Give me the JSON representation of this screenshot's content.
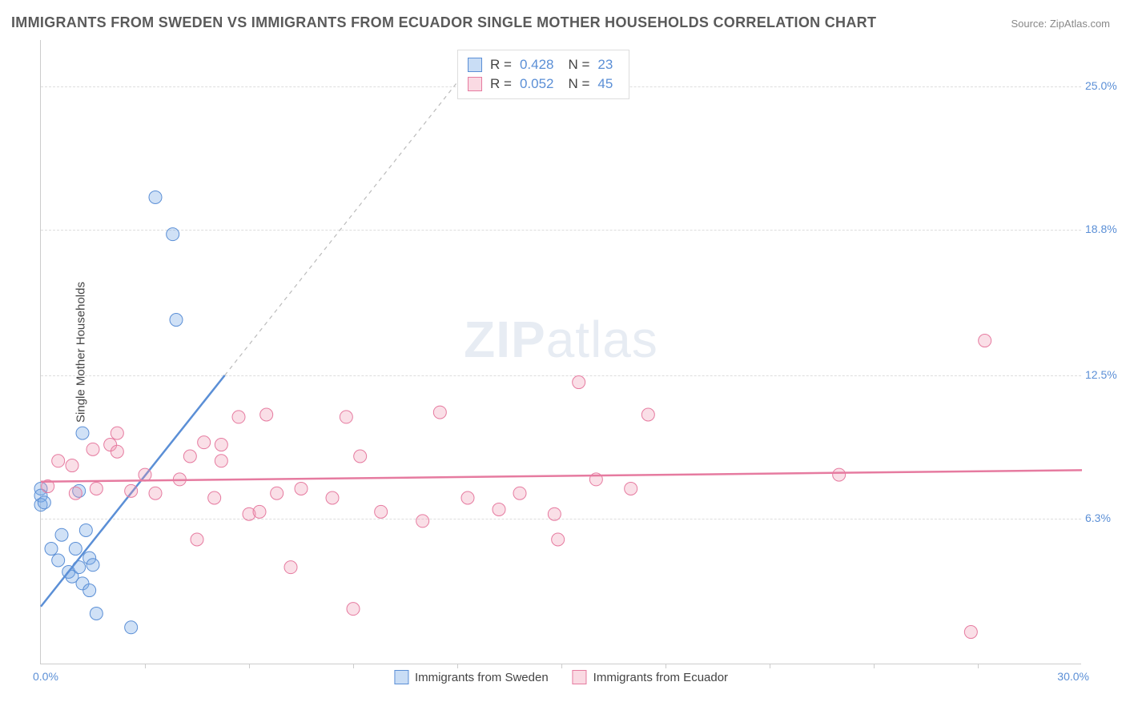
{
  "title": "IMMIGRANTS FROM SWEDEN VS IMMIGRANTS FROM ECUADOR SINGLE MOTHER HOUSEHOLDS CORRELATION CHART",
  "source": "Source: ZipAtlas.com",
  "watermark_zip": "ZIP",
  "watermark_atlas": "atlas",
  "ylabel": "Single Mother Households",
  "chart": {
    "type": "scatter",
    "xlim": [
      0,
      30
    ],
    "ylim": [
      0,
      27
    ],
    "xtick_start": "0.0%",
    "xtick_end": "30.0%",
    "xtick_marks": [
      3,
      6,
      9,
      12,
      15,
      18,
      21,
      24,
      27
    ],
    "yticks": [
      {
        "value": 6.3,
        "label": "6.3%"
      },
      {
        "value": 12.5,
        "label": "12.5%"
      },
      {
        "value": 18.8,
        "label": "18.8%"
      },
      {
        "value": 25.0,
        "label": "25.0%"
      }
    ],
    "background_color": "#ffffff",
    "grid_color": "#dddddd",
    "series": [
      {
        "name": "Immigrants from Sweden",
        "color_fill": "rgba(120,170,230,0.35)",
        "color_stroke": "#5b8fd6",
        "marker_radius": 8,
        "R": "0.428",
        "N": "23",
        "trend": {
          "x1": 0,
          "y1": 2.5,
          "x2": 5.3,
          "y2": 12.5,
          "dash_extend_x2": 12.7,
          "dash_extend_y2": 26.5
        },
        "points": [
          [
            0.0,
            7.6
          ],
          [
            0.0,
            7.3
          ],
          [
            0.0,
            6.9
          ],
          [
            0.1,
            7.0
          ],
          [
            0.3,
            5.0
          ],
          [
            0.5,
            4.5
          ],
          [
            0.6,
            5.6
          ],
          [
            0.8,
            4.0
          ],
          [
            0.9,
            3.8
          ],
          [
            1.0,
            5.0
          ],
          [
            1.1,
            4.2
          ],
          [
            1.2,
            3.5
          ],
          [
            1.3,
            5.8
          ],
          [
            1.4,
            3.2
          ],
          [
            1.4,
            4.6
          ],
          [
            1.5,
            4.3
          ],
          [
            1.1,
            7.5
          ],
          [
            1.2,
            10.0
          ],
          [
            1.6,
            2.2
          ],
          [
            2.6,
            1.6
          ],
          [
            3.3,
            20.2
          ],
          [
            3.8,
            18.6
          ],
          [
            3.9,
            14.9
          ]
        ]
      },
      {
        "name": "Immigrants from Ecuador",
        "color_fill": "rgba(240,150,175,0.30)",
        "color_stroke": "#e67ba0",
        "marker_radius": 8,
        "R": "0.052",
        "N": "45",
        "trend": {
          "x1": 0,
          "y1": 7.9,
          "x2": 30,
          "y2": 8.4
        },
        "points": [
          [
            0.2,
            7.7
          ],
          [
            0.5,
            8.8
          ],
          [
            0.9,
            8.6
          ],
          [
            1.0,
            7.4
          ],
          [
            1.5,
            9.3
          ],
          [
            1.6,
            7.6
          ],
          [
            2.0,
            9.5
          ],
          [
            2.2,
            9.2
          ],
          [
            2.2,
            10.0
          ],
          [
            2.6,
            7.5
          ],
          [
            3.0,
            8.2
          ],
          [
            3.3,
            7.4
          ],
          [
            4.0,
            8.0
          ],
          [
            4.3,
            9.0
          ],
          [
            4.5,
            5.4
          ],
          [
            4.7,
            9.6
          ],
          [
            5.0,
            7.2
          ],
          [
            5.2,
            8.8
          ],
          [
            5.2,
            9.5
          ],
          [
            5.7,
            10.7
          ],
          [
            6.0,
            6.5
          ],
          [
            6.3,
            6.6
          ],
          [
            6.5,
            10.8
          ],
          [
            6.8,
            7.4
          ],
          [
            7.2,
            4.2
          ],
          [
            7.5,
            7.6
          ],
          [
            8.4,
            7.2
          ],
          [
            8.8,
            10.7
          ],
          [
            9.0,
            2.4
          ],
          [
            9.2,
            9.0
          ],
          [
            9.8,
            6.6
          ],
          [
            11.0,
            6.2
          ],
          [
            11.5,
            10.9
          ],
          [
            12.3,
            7.2
          ],
          [
            13.2,
            6.7
          ],
          [
            13.8,
            7.4
          ],
          [
            14.8,
            6.5
          ],
          [
            14.9,
            5.4
          ],
          [
            15.5,
            12.2
          ],
          [
            16.0,
            8.0
          ],
          [
            17.0,
            7.6
          ],
          [
            17.5,
            10.8
          ],
          [
            26.8,
            1.4
          ],
          [
            27.2,
            14.0
          ],
          [
            23.0,
            8.2
          ]
        ]
      }
    ]
  },
  "stats_box": {
    "rows": [
      {
        "swatch": "blue",
        "r_label": "R =",
        "r_val": "0.428",
        "n_label": "N =",
        "n_val": "23"
      },
      {
        "swatch": "pink",
        "r_label": "R =",
        "r_val": "0.052",
        "n_label": "N =",
        "n_val": "45"
      }
    ]
  },
  "legend": {
    "items": [
      {
        "swatch": "blue",
        "label": "Immigrants from Sweden"
      },
      {
        "swatch": "pink",
        "label": "Immigrants from Ecuador"
      }
    ]
  }
}
